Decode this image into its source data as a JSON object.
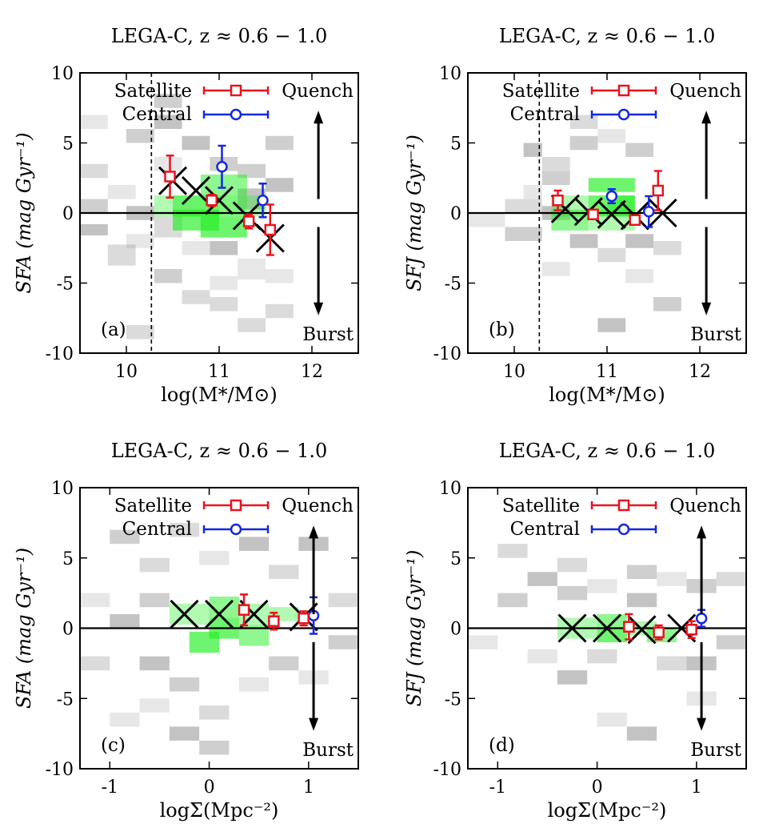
{
  "figure": {
    "description_colors": {
      "satellite": "#e8141e",
      "central": "#1428e0",
      "median_marker": "#000000",
      "hist_green": "#22ee22",
      "hist_gray": "#7a7a7a"
    }
  },
  "chart_data": [
    {
      "id": "a",
      "type": "scatter",
      "title": "LEGA-C, z ≈ 0.6 − 1.0",
      "xlabel": "log(M*/M⊙)",
      "ylabel": "SFA (mag Gyr⁻¹)",
      "xlim": [
        9.5,
        12.5
      ],
      "ylim": [
        -10,
        10
      ],
      "xticks": [
        10,
        11,
        12
      ],
      "xtick_labels": [
        "10",
        "11",
        "12"
      ],
      "yticks": [
        -10,
        -5,
        0,
        5,
        10
      ],
      "ytick_labels": [
        "-10",
        "-5",
        "0",
        "5",
        "10"
      ],
      "panel_label": "(a)",
      "vline_x": 10.27,
      "legend": [
        "Satellite",
        "Central"
      ],
      "quench_label": "Quench",
      "burst_label": "Burst",
      "arrow_x": 12.07,
      "median_x": [
        10.5,
        10.75,
        11.0,
        11.3,
        11.55
      ],
      "median_y": [
        2.3,
        1.6,
        0.9,
        -0.2,
        -1.8
      ],
      "satellite": {
        "x": [
          10.47,
          10.92,
          11.32,
          11.55
        ],
        "y": [
          2.6,
          0.9,
          -0.6,
          -1.2
        ],
        "yerr": [
          1.5,
          0.4,
          0.5,
          1.8
        ]
      },
      "central": {
        "x": [
          11.03,
          11.47
        ],
        "y": [
          3.3,
          0.9
        ],
        "yerr": [
          1.5,
          1.2
        ]
      },
      "hist_green": [
        [
          10.3,
          0.5,
          0.5,
          1.5
        ],
        [
          10.5,
          0.5,
          0.5,
          1.5
        ],
        [
          10.5,
          -0.5,
          0.5,
          1.5
        ],
        [
          10.8,
          0.5,
          0.5,
          1.5
        ],
        [
          10.8,
          2.0,
          0.5,
          1.5
        ],
        [
          10.8,
          -1.0,
          0.5,
          1.5
        ],
        [
          11.0,
          0.5,
          0.5,
          1.5
        ]
      ],
      "hist_gray": [
        [
          9.5,
          6.5,
          0.3,
          1.0
        ],
        [
          9.5,
          3.0,
          0.3,
          1.0
        ],
        [
          9.5,
          0.5,
          0.3,
          1.0
        ],
        [
          9.5,
          -1.2,
          0.3,
          0.8
        ],
        [
          9.8,
          1.5,
          0.3,
          1.0
        ],
        [
          9.8,
          -3.0,
          0.3,
          1.5
        ],
        [
          10.0,
          5.5,
          0.3,
          1.0
        ],
        [
          10.0,
          0.0,
          0.3,
          1.0
        ],
        [
          10.0,
          -2.0,
          0.3,
          1.0
        ],
        [
          10.0,
          -8.5,
          0.3,
          1.0
        ],
        [
          10.3,
          8.0,
          0.3,
          1.0
        ],
        [
          10.3,
          6.5,
          0.3,
          1.0
        ],
        [
          10.3,
          3.5,
          0.3,
          1.0
        ],
        [
          10.3,
          -1.0,
          0.3,
          1.5
        ],
        [
          10.3,
          -4.5,
          0.3,
          1.0
        ],
        [
          10.6,
          5.0,
          0.3,
          1.0
        ],
        [
          10.6,
          -2.5,
          0.3,
          1.0
        ],
        [
          10.6,
          -6.0,
          0.3,
          1.0
        ],
        [
          10.9,
          3.5,
          0.3,
          1.0
        ],
        [
          10.9,
          -2.5,
          0.3,
          1.0
        ],
        [
          10.9,
          -5.0,
          0.3,
          1.0
        ],
        [
          10.9,
          -6.5,
          0.3,
          1.0
        ],
        [
          11.2,
          3.0,
          0.3,
          1.0
        ],
        [
          11.2,
          1.0,
          0.3,
          1.5
        ],
        [
          11.2,
          -4.0,
          0.3,
          1.5
        ],
        [
          11.2,
          -8.0,
          0.3,
          1.0
        ],
        [
          11.5,
          5.0,
          0.3,
          1.0
        ],
        [
          11.5,
          2.0,
          0.3,
          1.0
        ],
        [
          11.5,
          -4.5,
          0.3,
          1.0
        ],
        [
          11.5,
          -7.0,
          0.3,
          1.0
        ]
      ]
    },
    {
      "id": "b",
      "type": "scatter",
      "title": "LEGA-C, z ≈ 0.6 − 1.0",
      "xlabel": "log(M*/M⊙)",
      "ylabel": "SFJ (mag Gyr⁻¹)",
      "xlim": [
        9.5,
        12.5
      ],
      "ylim": [
        -10,
        10
      ],
      "xticks": [
        10,
        11,
        12
      ],
      "xtick_labels": [
        "10",
        "11",
        "12"
      ],
      "yticks": [
        -10,
        -5,
        0,
        5,
        10
      ],
      "ytick_labels": [
        "-10",
        "-5",
        "0",
        "5",
        "10"
      ],
      "panel_label": "(b)",
      "vline_x": 10.27,
      "legend": [
        "Satellite",
        "Central"
      ],
      "quench_label": "Quench",
      "burst_label": "Burst",
      "arrow_x": 12.07,
      "median_x": [
        10.55,
        10.8,
        11.05,
        11.3,
        11.6
      ],
      "median_y": [
        0.3,
        0.1,
        -0.1,
        -0.2,
        0.0
      ],
      "satellite": {
        "x": [
          10.47,
          10.85,
          11.3,
          11.55
        ],
        "y": [
          0.9,
          -0.1,
          -0.5,
          1.6
        ],
        "yerr": [
          0.7,
          0.3,
          0.3,
          1.4
        ]
      },
      "central": {
        "x": [
          11.05,
          11.45
        ],
        "y": [
          1.2,
          0.1
        ],
        "yerr": [
          0.5,
          1.1
        ]
      },
      "hist_green": [
        [
          10.4,
          0.5,
          0.4,
          1.5
        ],
        [
          10.4,
          -0.5,
          0.4,
          1.5
        ],
        [
          10.8,
          0.5,
          0.5,
          1.5
        ],
        [
          10.8,
          -0.5,
          0.5,
          1.5
        ],
        [
          11.0,
          0.5,
          0.3,
          1.5
        ],
        [
          10.8,
          2.0,
          0.5,
          1.0
        ]
      ],
      "hist_gray": [
        [
          9.5,
          -0.5,
          0.4,
          1.0
        ],
        [
          9.9,
          0.5,
          0.4,
          1.0
        ],
        [
          9.9,
          -1.5,
          0.4,
          1.0
        ],
        [
          10.1,
          4.5,
          0.2,
          1.0
        ],
        [
          10.1,
          1.5,
          0.2,
          1.0
        ],
        [
          10.3,
          3.5,
          0.3,
          1.0
        ],
        [
          10.3,
          2.5,
          0.3,
          1.0
        ],
        [
          10.3,
          0.0,
          0.3,
          1.0
        ],
        [
          10.3,
          -4.0,
          0.3,
          1.0
        ],
        [
          10.6,
          6.5,
          0.3,
          1.0
        ],
        [
          10.6,
          5.0,
          0.3,
          1.0
        ],
        [
          10.6,
          -2.0,
          0.3,
          1.0
        ],
        [
          10.9,
          5.5,
          0.3,
          1.0
        ],
        [
          10.9,
          -3.0,
          0.3,
          1.0
        ],
        [
          11.2,
          4.5,
          0.3,
          1.0
        ],
        [
          11.2,
          -2.0,
          0.3,
          1.0
        ],
        [
          11.2,
          -4.5,
          0.3,
          1.0
        ],
        [
          11.5,
          -2.5,
          0.3,
          1.0
        ],
        [
          11.5,
          -6.5,
          0.3,
          1.0
        ],
        [
          10.9,
          -8.0,
          0.3,
          1.0
        ]
      ]
    },
    {
      "id": "c",
      "type": "scatter",
      "title": "LEGA-C, z ≈ 0.6 − 1.0",
      "xlabel": "logΣ(Mpc⁻²)",
      "ylabel": "SFA (mag Gyr⁻¹)",
      "xlim": [
        -1.3,
        1.5
      ],
      "ylim": [
        -10,
        10
      ],
      "xticks": [
        -1,
        0,
        1
      ],
      "xtick_labels": [
        "-1",
        "0",
        "1"
      ],
      "yticks": [
        -10,
        -5,
        0,
        5,
        10
      ],
      "ytick_labels": [
        "-10",
        "-5",
        "0",
        "5",
        "10"
      ],
      "panel_label": "(c)",
      "legend": [
        "Satellite",
        "Central"
      ],
      "quench_label": "Quench",
      "burst_label": "Burst",
      "arrow_x": 1.05,
      "median_x": [
        -0.25,
        0.1,
        0.45,
        0.95
      ],
      "median_y": [
        1.0,
        1.0,
        1.0,
        0.8
      ],
      "satellite": {
        "x": [
          0.35,
          0.65,
          0.95
        ],
        "y": [
          1.3,
          0.5,
          0.7
        ],
        "yerr": [
          1.1,
          0.6,
          0.5
        ]
      },
      "central": {
        "x": [
          1.05
        ],
        "y": [
          0.9
        ],
        "yerr": [
          1.3
        ]
      },
      "hist_green": [
        [
          -0.4,
          1.0,
          0.4,
          1.5
        ],
        [
          0.0,
          1.5,
          0.3,
          1.5
        ],
        [
          0.0,
          0.0,
          0.3,
          1.5
        ],
        [
          0.3,
          1.0,
          0.3,
          1.5
        ],
        [
          0.3,
          -0.5,
          0.3,
          1.5
        ],
        [
          -0.2,
          -1.0,
          0.3,
          1.5
        ],
        [
          0.6,
          1.0,
          0.3,
          1.0
        ]
      ],
      "hist_gray": [
        [
          -1.3,
          2.0,
          0.3,
          1.0
        ],
        [
          -1.3,
          -2.5,
          0.3,
          1.0
        ],
        [
          -1.0,
          6.5,
          0.3,
          1.0
        ],
        [
          -1.0,
          0.5,
          0.3,
          1.0
        ],
        [
          -1.0,
          -6.5,
          0.3,
          1.0
        ],
        [
          -0.7,
          4.5,
          0.3,
          1.0
        ],
        [
          -0.7,
          2.0,
          0.3,
          1.0
        ],
        [
          -0.7,
          -2.5,
          0.3,
          1.0
        ],
        [
          -0.7,
          -5.5,
          0.3,
          1.0
        ],
        [
          -0.4,
          7.0,
          0.3,
          1.0
        ],
        [
          -0.4,
          -4.0,
          0.3,
          1.0
        ],
        [
          -0.4,
          -7.5,
          0.3,
          1.0
        ],
        [
          -0.1,
          5.0,
          0.3,
          1.0
        ],
        [
          -0.1,
          -6.0,
          0.3,
          1.0
        ],
        [
          -0.1,
          -8.5,
          0.3,
          1.0
        ],
        [
          0.3,
          6.0,
          0.3,
          1.0
        ],
        [
          0.3,
          -4.0,
          0.3,
          1.0
        ],
        [
          0.6,
          4.0,
          0.3,
          1.0
        ],
        [
          0.6,
          -2.5,
          0.3,
          1.0
        ],
        [
          0.9,
          6.0,
          0.3,
          1.0
        ],
        [
          0.9,
          -3.5,
          0.3,
          1.0
        ],
        [
          1.2,
          2.0,
          0.3,
          1.0
        ],
        [
          1.2,
          -1.0,
          0.3,
          1.0
        ]
      ]
    },
    {
      "id": "d",
      "type": "scatter",
      "title": "LEGA-C, z ≈ 0.6 − 1.0",
      "xlabel": "logΣ(Mpc⁻²)",
      "ylabel": "SFJ (mag Gyr⁻¹)",
      "xlim": [
        -1.3,
        1.5
      ],
      "ylim": [
        -10,
        10
      ],
      "xticks": [
        -1,
        0,
        1
      ],
      "xtick_labels": [
        "-1",
        "0",
        "1"
      ],
      "yticks": [
        -10,
        -5,
        0,
        5,
        10
      ],
      "ytick_labels": [
        "-10",
        "-5",
        "0",
        "5",
        "10"
      ],
      "panel_label": "(d)",
      "legend": [
        "Satellite",
        "Central"
      ],
      "quench_label": "Quench",
      "burst_label": "Burst",
      "arrow_x": 1.05,
      "median_x": [
        -0.25,
        0.1,
        0.45,
        0.85
      ],
      "median_y": [
        0.0,
        0.0,
        -0.1,
        0.0
      ],
      "satellite": {
        "x": [
          0.32,
          0.62,
          0.95
        ],
        "y": [
          0.1,
          -0.3,
          -0.1
        ],
        "yerr": [
          0.9,
          0.5,
          0.6
        ]
      },
      "central": {
        "x": [
          1.05
        ],
        "y": [
          0.7
        ],
        "yerr": [
          0.6
        ]
      },
      "hist_green": [
        [
          -0.4,
          0.0,
          0.4,
          1.5
        ],
        [
          0.0,
          0.5,
          0.3,
          1.0
        ],
        [
          0.0,
          -0.5,
          0.3,
          1.0
        ],
        [
          0.3,
          0.0,
          0.3,
          1.0
        ],
        [
          0.5,
          -0.5,
          0.3,
          1.0
        ]
      ],
      "hist_gray": [
        [
          -1.3,
          -1.0,
          0.3,
          1.0
        ],
        [
          -1.0,
          5.5,
          0.3,
          1.0
        ],
        [
          -1.0,
          2.0,
          0.3,
          1.0
        ],
        [
          -0.7,
          3.5,
          0.3,
          1.0
        ],
        [
          -0.7,
          -2.0,
          0.3,
          1.0
        ],
        [
          -0.4,
          4.5,
          0.3,
          1.0
        ],
        [
          -0.4,
          2.5,
          0.3,
          1.0
        ],
        [
          -0.4,
          -3.5,
          0.3,
          1.0
        ],
        [
          -0.1,
          3.0,
          0.3,
          1.0
        ],
        [
          -0.1,
          -2.0,
          0.3,
          1.0
        ],
        [
          0.3,
          4.0,
          0.3,
          1.0
        ],
        [
          0.3,
          2.0,
          0.3,
          1.0
        ],
        [
          0.6,
          3.5,
          0.3,
          1.0
        ],
        [
          0.6,
          -2.5,
          0.3,
          1.0
        ],
        [
          0.9,
          3.0,
          0.3,
          1.0
        ],
        [
          0.9,
          -2.5,
          0.3,
          1.0
        ],
        [
          0.9,
          -5.0,
          0.3,
          1.0
        ],
        [
          1.2,
          3.5,
          0.3,
          1.0
        ],
        [
          1.2,
          -1.0,
          0.3,
          1.0
        ],
        [
          0.3,
          -7.5,
          0.3,
          1.0
        ],
        [
          0.0,
          -6.5,
          0.3,
          1.0
        ]
      ]
    }
  ]
}
